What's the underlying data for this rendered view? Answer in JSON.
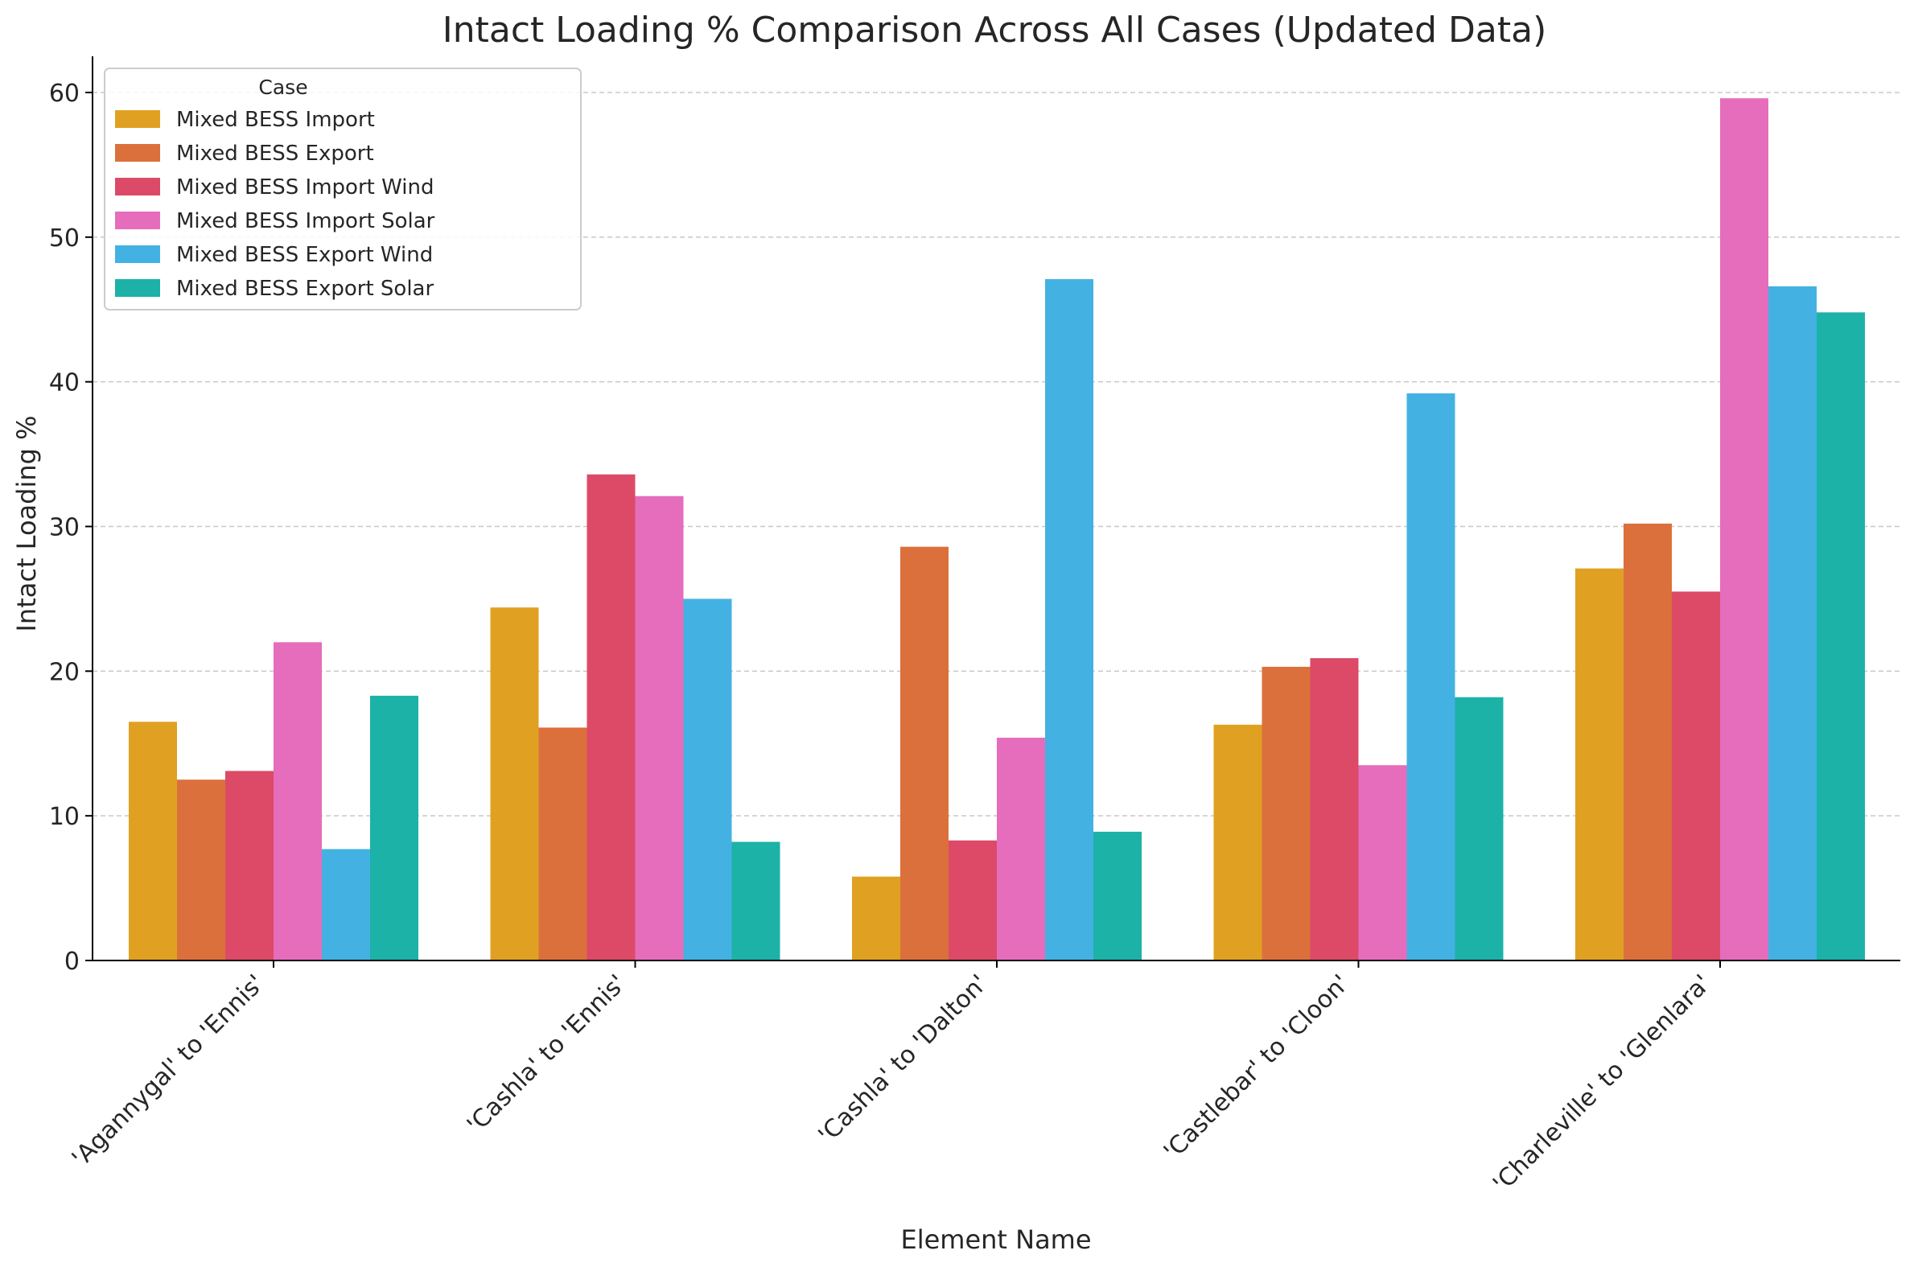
{
  "chart_data": {
    "type": "bar",
    "title": "Intact Loading % Comparison Across All Cases (Updated Data)",
    "xlabel": "Element Name",
    "ylabel": "Intact Loading %",
    "ylim": [
      0,
      62.5
    ],
    "yticks": [
      0,
      10,
      20,
      30,
      40,
      50,
      60
    ],
    "grid": "y-dashed",
    "legend_title": "Case",
    "legend_position": "top-left",
    "categories": [
      "'Agannygal' to 'Ennis'",
      "'Cashla' to 'Ennis'",
      "'Cashla' to 'Dalton'",
      "'Castlebar' to 'Cloon'",
      "'Charleville' to 'Glenlara'"
    ],
    "series": [
      {
        "name": "Mixed BESS Import",
        "color": "#E0A122",
        "values": [
          16.5,
          24.4,
          5.8,
          16.3,
          27.1
        ]
      },
      {
        "name": "Mixed BESS Export",
        "color": "#DB703C",
        "values": [
          12.5,
          16.1,
          28.6,
          20.3,
          30.2
        ]
      },
      {
        "name": "Mixed BESS Import Wind",
        "color": "#DC4A67",
        "values": [
          13.1,
          33.6,
          8.3,
          20.9,
          25.5
        ]
      },
      {
        "name": "Mixed BESS Import Solar",
        "color": "#E56DBC",
        "values": [
          22.0,
          32.1,
          15.4,
          13.5,
          59.6
        ]
      },
      {
        "name": "Mixed BESS Export Wind",
        "color": "#43B2E2",
        "values": [
          7.7,
          25.0,
          47.1,
          39.2,
          46.6
        ]
      },
      {
        "name": "Mixed BESS Export Solar",
        "color": "#1CB2A8",
        "values": [
          18.3,
          8.2,
          8.9,
          18.2,
          44.8
        ]
      }
    ]
  }
}
